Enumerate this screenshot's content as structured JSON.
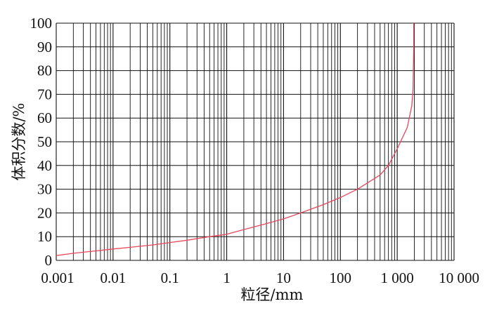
{
  "chart_data": {
    "type": "line",
    "title": "",
    "xlabel": "粒径/mm",
    "ylabel": "体积分数/%",
    "x_scale": "log",
    "xlim": [
      0.001,
      10000
    ],
    "ylim": [
      0,
      100
    ],
    "grid": true,
    "x_ticks": [
      {
        "value": 0.001,
        "label": "0.001"
      },
      {
        "value": 0.01,
        "label": "0.01"
      },
      {
        "value": 0.1,
        "label": "0.1"
      },
      {
        "value": 1,
        "label": "1"
      },
      {
        "value": 10,
        "label": "10"
      },
      {
        "value": 100,
        "label": "100"
      },
      {
        "value": 1000,
        "label": "1 000"
      },
      {
        "value": 10000,
        "label": "10 000"
      }
    ],
    "y_ticks": [
      "0",
      "10",
      "20",
      "30",
      "40",
      "50",
      "60",
      "70",
      "80",
      "90",
      "100"
    ],
    "series": [
      {
        "color": "#e8475c",
        "x": [
          0.001,
          0.002,
          0.005,
          0.01,
          0.02,
          0.05,
          0.1,
          0.2,
          0.5,
          1,
          2,
          5,
          10,
          20,
          50,
          100,
          200,
          500,
          700,
          1000,
          1500,
          1800,
          1900,
          1950,
          1950
        ],
        "y": [
          2,
          3,
          4,
          4.8,
          5.5,
          6.5,
          7.5,
          8.5,
          10,
          11,
          13,
          15.5,
          17.5,
          20,
          23.5,
          26.5,
          30,
          36,
          40,
          47,
          56,
          65,
          72,
          90,
          100
        ]
      }
    ]
  }
}
